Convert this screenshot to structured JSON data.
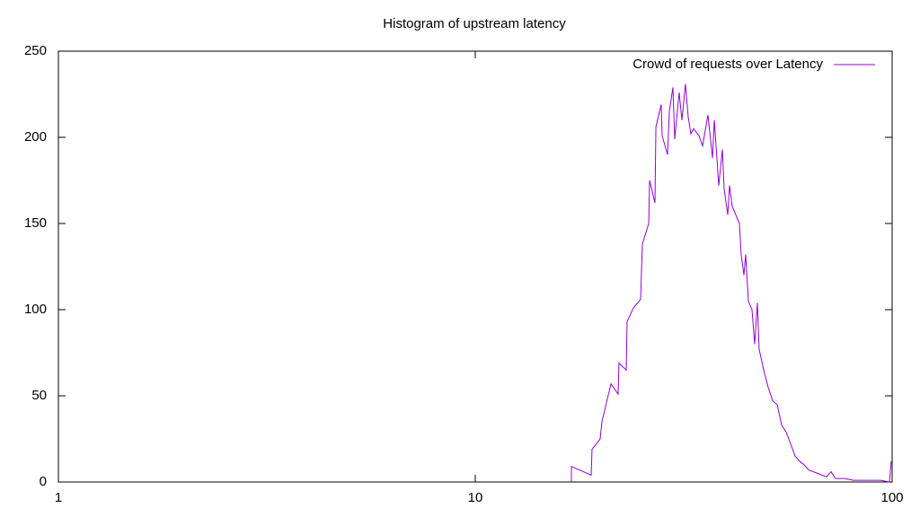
{
  "chart_data": {
    "type": "line",
    "title": "Histogram of upstream latency",
    "xscale": "log",
    "xlim": [
      1,
      100
    ],
    "xticks": [
      1,
      10,
      100
    ],
    "ylim": [
      0,
      250
    ],
    "yticks": [
      0,
      50,
      100,
      150,
      200,
      250
    ],
    "legend": "top-right",
    "x": [
      17.0,
      17.01,
      18.97,
      19.06,
      19.93,
      20.13,
      21.16,
      22.01,
      22.12,
      23.02,
      23.13,
      23.95,
      24.92,
      25.17,
      26.06,
      26.19,
      26.98,
      27.12,
      27.93,
      28.07,
      28.92,
      29.21,
      29.79,
      30.09,
      30.84,
      31.31,
      31.93,
      32.41,
      32.9,
      33.39,
      34.4,
      35.09,
      36.15,
      37.07,
      37.44,
      38.38,
      39.15,
      39.54,
      40.33,
      40.73,
      41.34,
      43.01,
      43.44,
      44.1,
      44.53,
      45.2,
      46.11,
      46.8,
      47.5,
      47.97,
      49.18,
      50.42,
      51.7,
      52.99,
      54.33,
      55.69,
      57.1,
      58.53,
      59.98,
      61.5,
      63.04,
      66.24,
      69.61,
      71.35,
      73.13,
      76.87,
      80.79,
      84.9,
      89.22,
      93.76,
      98.52,
      99.5
    ],
    "series": [
      {
        "name": "Crowd of requests over Latency",
        "color": "#9400d3",
        "values": [
          0,
          9,
          4,
          19,
          25,
          35,
          57,
          51,
          69,
          65,
          93,
          101,
          106,
          138,
          150,
          175,
          162,
          206,
          219,
          201,
          190,
          215,
          229,
          199,
          226,
          210,
          231,
          212,
          202,
          205,
          201,
          195,
          213,
          188,
          210,
          172,
          193,
          170,
          155,
          172,
          160,
          150,
          132,
          120,
          132,
          105,
          100,
          80,
          104,
          77,
          65,
          55,
          47,
          45,
          33,
          29,
          22,
          15,
          12,
          10,
          7,
          5,
          3,
          6,
          2,
          2,
          1,
          1,
          1,
          1,
          0,
          12
        ]
      }
    ]
  }
}
